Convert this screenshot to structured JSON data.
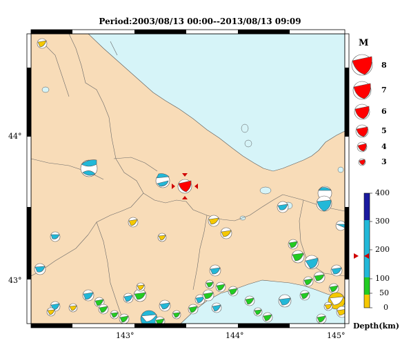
{
  "title": "Period:2003/08/13 00:00--2013/08/13 09:09",
  "axes": {
    "x_ticks": [
      "143°",
      "144°",
      "145°"
    ],
    "y_ticks": [
      "44°",
      "43°"
    ]
  },
  "magnitude_legend": {
    "title": "M",
    "entries": [
      "8",
      "7",
      "6",
      "5",
      "4",
      "3"
    ]
  },
  "depth_scale": {
    "title": "Depth(km)",
    "ticks": [
      "400",
      "300",
      "200",
      "100",
      "50",
      "0"
    ],
    "colors": {
      "0-50": "#f5c800",
      "50-100": "#22cc22",
      "100-300": "#22b8d8",
      "300-400": "#1a1aa0"
    }
  },
  "map_colors": {
    "land": "#f8dcb8",
    "sea": "#d6f4f8",
    "mainshock": "#ff0000"
  }
}
